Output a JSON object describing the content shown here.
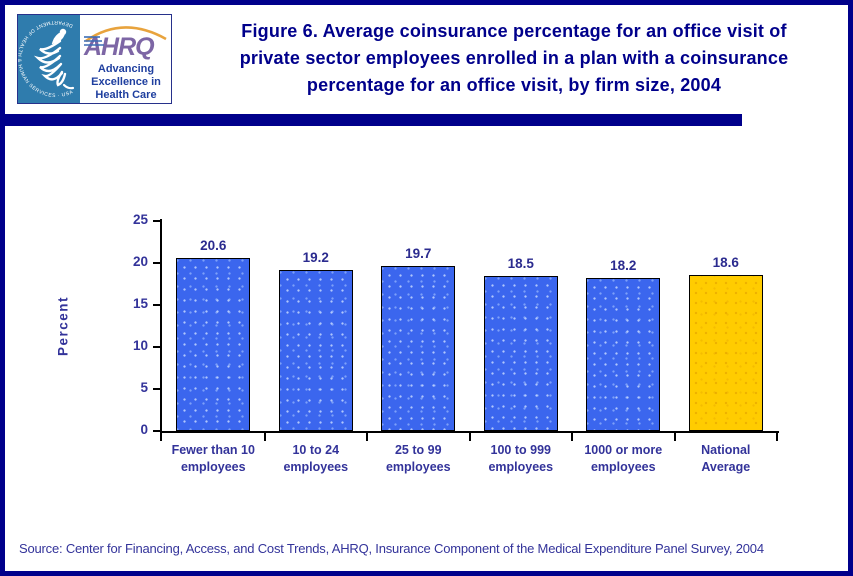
{
  "header": {
    "logo": {
      "hhs_circular_text": "DEPARTMENT OF HEALTH & HUMAN SERVICES · USA",
      "ahrq_acronym": "AHRQ",
      "ahrq_tagline_lines": [
        "Advancing",
        "Excellence in",
        "Health Care"
      ]
    },
    "title_lines": [
      "Figure 6. Average coinsurance percentage for an office visit of",
      "private sector employees enrolled in a plan with a coinsurance",
      "percentage for an office visit, by firm size, 2004"
    ]
  },
  "chart_data": {
    "type": "bar",
    "title": "",
    "xlabel": "",
    "ylabel": "Percent",
    "ylim": [
      0,
      25
    ],
    "yticks": [
      0,
      5,
      10,
      15,
      20,
      25
    ],
    "grid": false,
    "legend": null,
    "categories": [
      [
        "Fewer than 10",
        "employees"
      ],
      [
        "10 to 24",
        "employees"
      ],
      [
        "25 to 99",
        "employees"
      ],
      [
        "100 to 999",
        "employees"
      ],
      [
        "1000 or more",
        "employees"
      ],
      [
        "National",
        "Average"
      ]
    ],
    "values": [
      20.6,
      19.2,
      19.7,
      18.5,
      18.2,
      18.6
    ],
    "value_labels": [
      "20.6",
      "19.2",
      "19.7",
      "18.5",
      "18.2",
      "18.6"
    ],
    "bar_colors": [
      "#3B66EE",
      "#3B66EE",
      "#3B66EE",
      "#3B66EE",
      "#3B66EE",
      "#FFCC00"
    ],
    "bar_styles": [
      "blue",
      "blue",
      "blue",
      "blue",
      "blue",
      "gold"
    ]
  },
  "footer": {
    "source": "Source: Center for Financing, Access, and Cost Trends, AHRQ, Insurance Component of the Medical Expenditure Panel Survey, 2004"
  },
  "colors": {
    "accent_navy": "#00008B",
    "chart_text_navy": "#33339A",
    "bar_blue": "#3B66EE",
    "bar_gold": "#FFCC00",
    "hhs_seal_blue": "#2F7CAD",
    "ahrq_purple": "#7D66A5",
    "ahrq_arc_orange": "#E8A33D"
  }
}
